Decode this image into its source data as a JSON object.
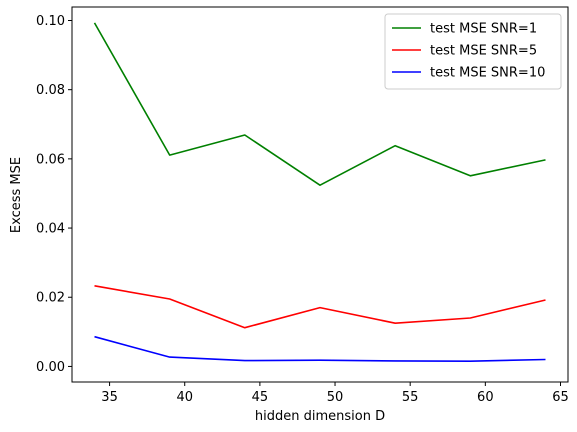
{
  "chart_data": {
    "type": "line",
    "xlabel": "hidden dimension D",
    "ylabel": "Excess MSE",
    "xlim": [
      32.5,
      65.5
    ],
    "ylim": [
      -0.0045,
      0.1039
    ],
    "xticks": [
      35,
      40,
      45,
      50,
      55,
      60,
      65
    ],
    "xtick_labels": [
      "35",
      "40",
      "45",
      "50",
      "55",
      "60",
      "65"
    ],
    "yticks": [
      0.0,
      0.02,
      0.04,
      0.06,
      0.08,
      0.1
    ],
    "ytick_labels": [
      "0.00",
      "0.02",
      "0.04",
      "0.06",
      "0.08",
      "0.10"
    ],
    "grid": false,
    "legend_position": "top-right",
    "x": [
      34,
      39,
      44,
      49,
      54,
      59,
      64
    ],
    "series": [
      {
        "name": "test MSE SNR=1",
        "color": "#008000",
        "values": [
          0.0993,
          0.0611,
          0.0669,
          0.0524,
          0.0638,
          0.0551,
          0.0597
        ]
      },
      {
        "name": "test MSE SNR=5",
        "color": "#ff0000",
        "values": [
          0.0233,
          0.0195,
          0.0112,
          0.017,
          0.0125,
          0.014,
          0.0192
        ]
      },
      {
        "name": "test MSE SNR=10",
        "color": "#0000ff",
        "values": [
          0.0086,
          0.0027,
          0.0017,
          0.0018,
          0.0016,
          0.0015,
          0.002
        ]
      }
    ]
  }
}
